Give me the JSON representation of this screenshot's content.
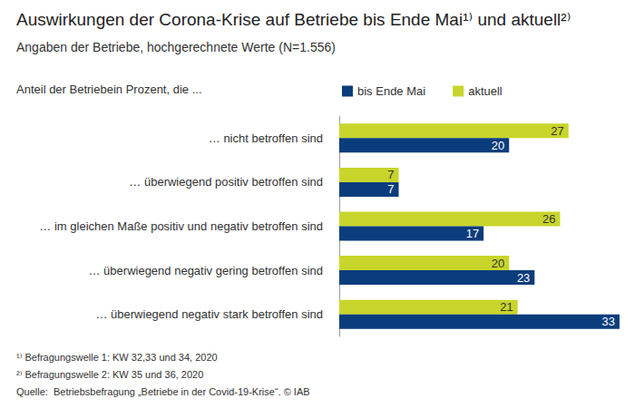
{
  "chart_data": {
    "type": "bar",
    "orientation": "horizontal",
    "title": "Auswirkungen der Corona-Krise auf Betriebe bis Ende Mai¹⁾ und aktuell²⁾",
    "subtitle": "Angaben der Betriebe, hochgerechnete Werte (N=1.556)",
    "ylabel": "Anteil der Betriebein Prozent, die ...",
    "categories": [
      "… nicht betroffen sind",
      "… überwiegend positiv betroffen sind",
      "… im gleichen Maße positiv und negativ betroffen sind",
      "… überwiegend negativ gering betroffen sind",
      "… überwiegend negativ stark betroffen sind"
    ],
    "series": [
      {
        "name": "bis Ende Mai",
        "color": "#0b3d7c",
        "values": [
          20,
          7,
          17,
          23,
          33
        ]
      },
      {
        "name": "aktuell",
        "color": "#c8d52a",
        "values": [
          27,
          7,
          26,
          20,
          21
        ]
      }
    ],
    "xlim": [
      0,
      33
    ],
    "data_labels": true,
    "tick_labels": "y",
    "grid": false,
    "legend": "top-right",
    "notes": [
      "¹⁾ Befragungswelle 1: KW 32,33 und 34, 2020",
      "²⁾ Befragungswelle 2: KW 35 und 36, 2020",
      "Quelle:  Betriebsbefragung „Betriebe in der Covid-19-Krise“. © IAB"
    ]
  }
}
